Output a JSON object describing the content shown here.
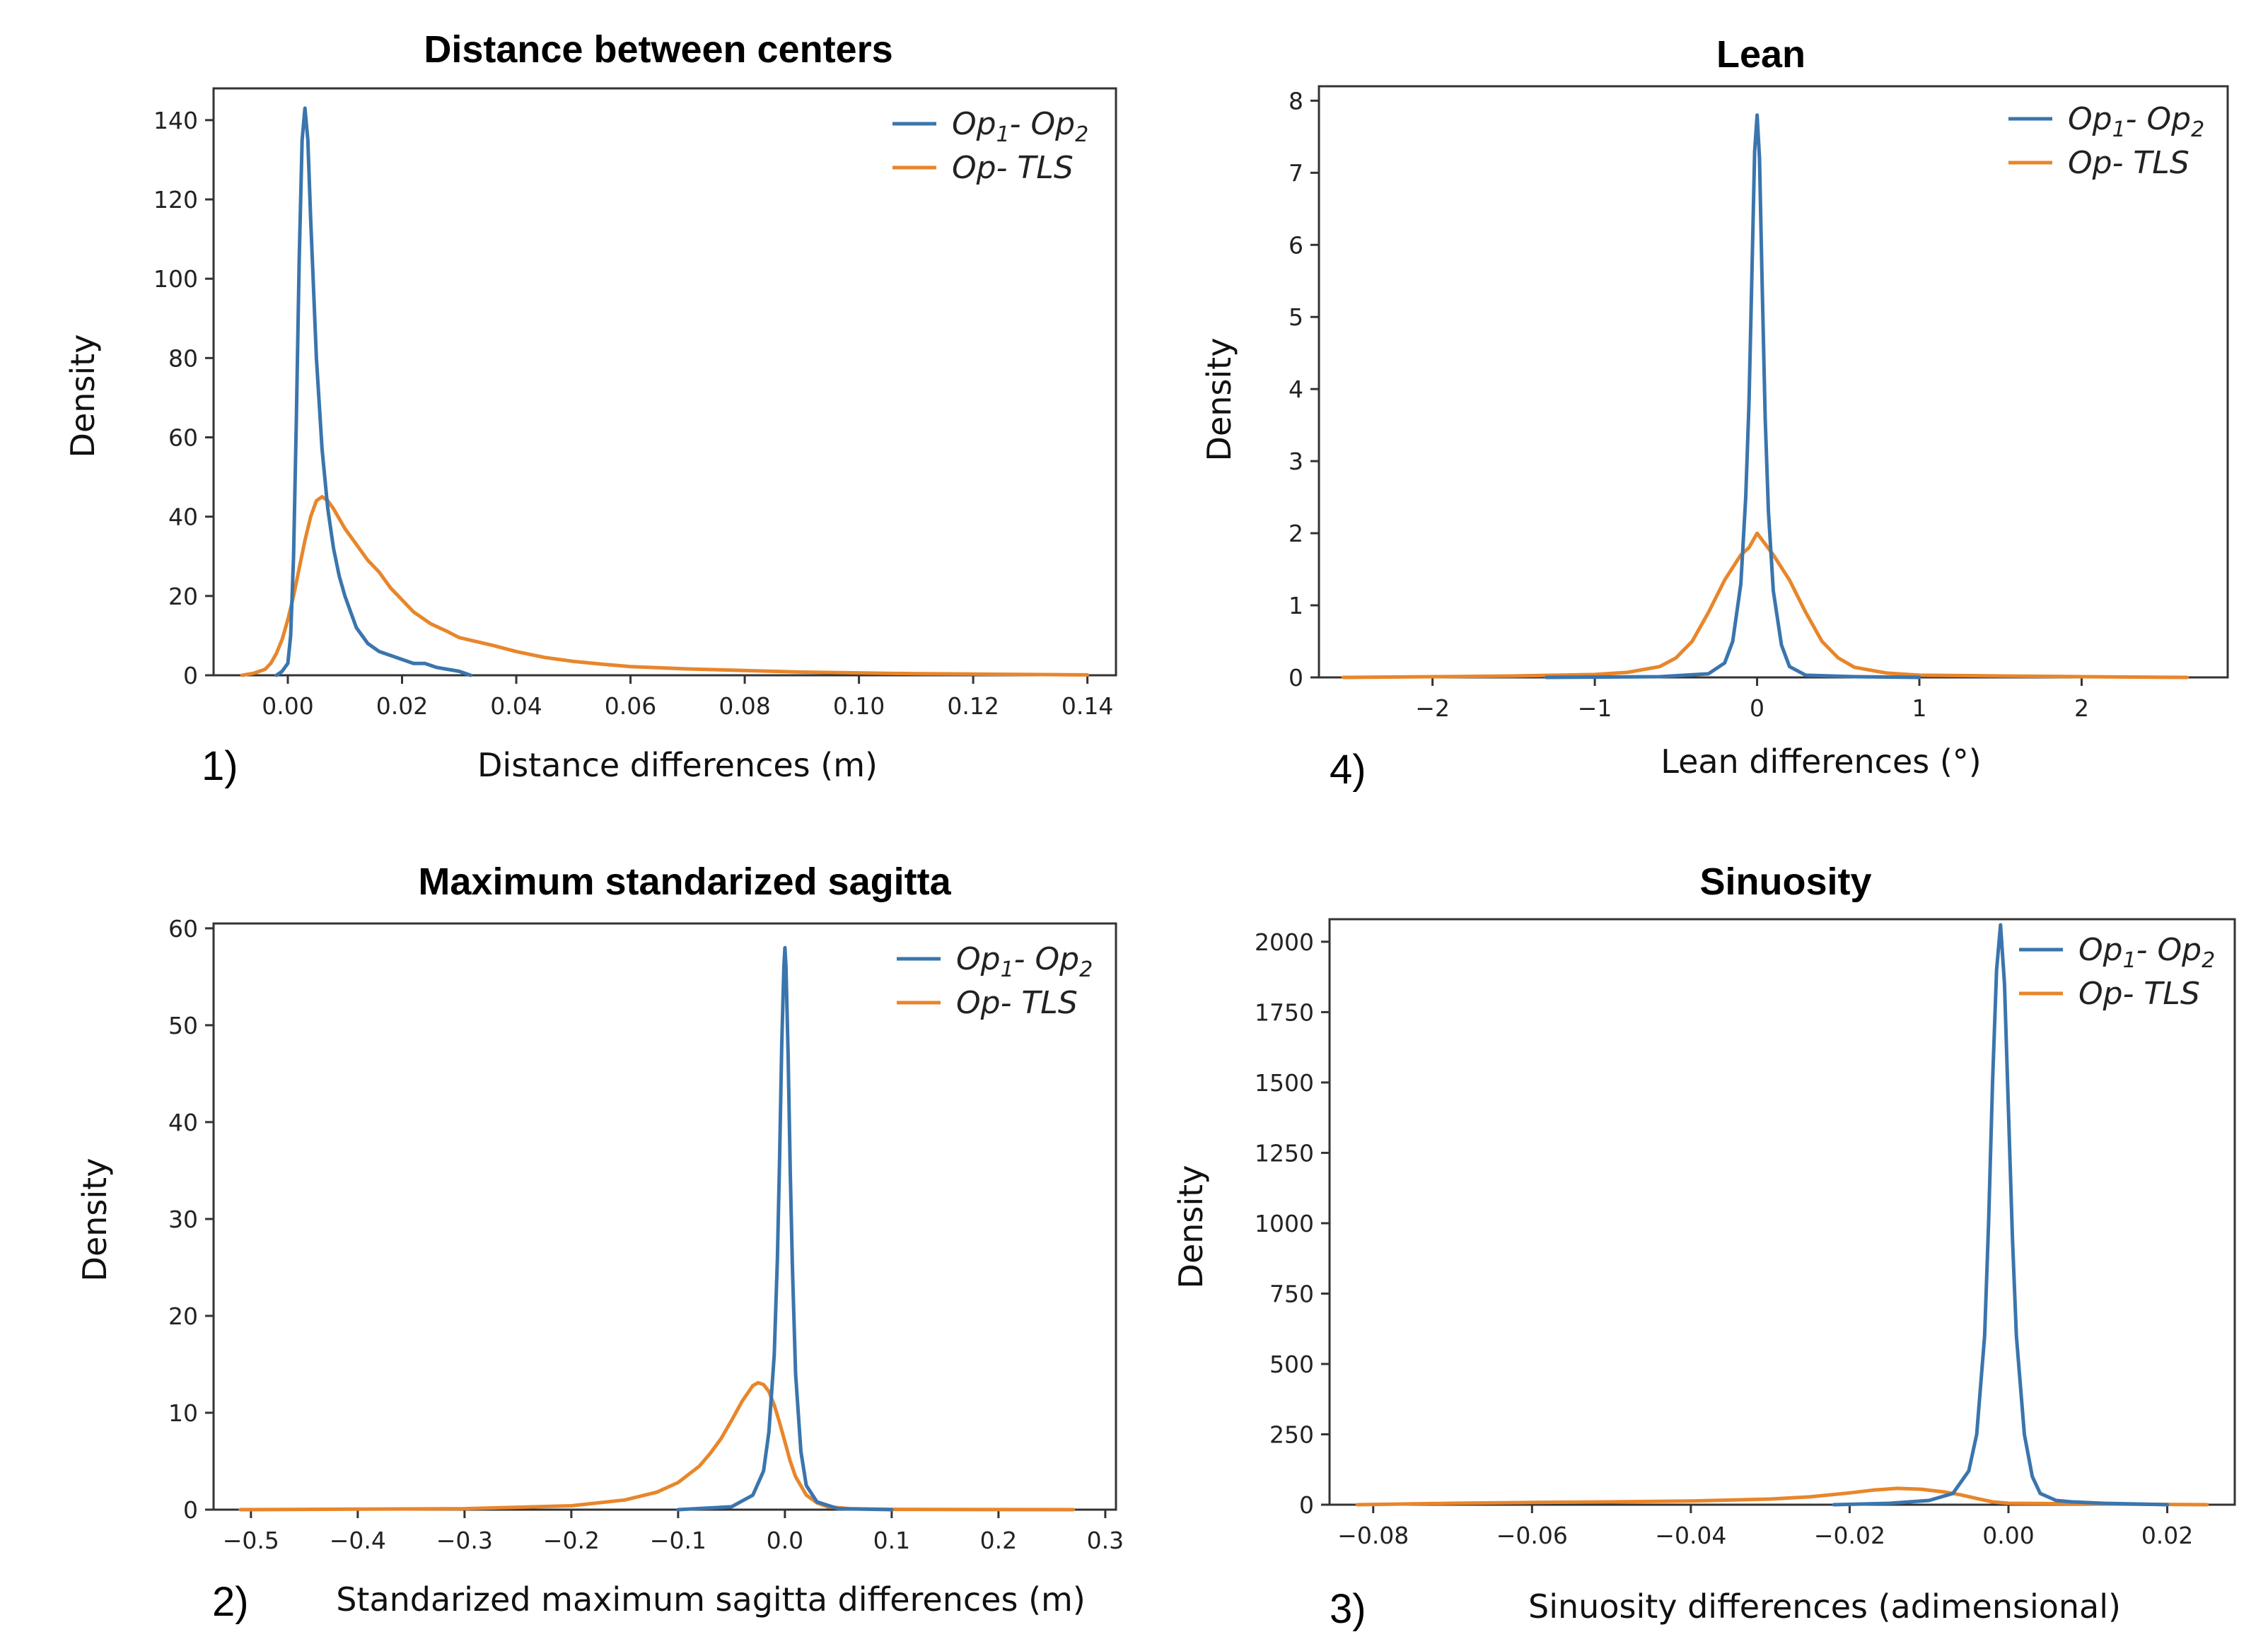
{
  "chart_data": [
    {
      "id": "p1",
      "type": "line",
      "title": "Distance between centers",
      "xlabel": "Distance differences  (m)",
      "ylabel": "Density",
      "panel_label": "1)",
      "xlim": [
        -0.013,
        0.145
      ],
      "ylim": [
        0,
        148
      ],
      "xticks": [
        0.0,
        0.02,
        0.04,
        0.06,
        0.08,
        0.1,
        0.12,
        0.14
      ],
      "xtick_labels": [
        "0.00",
        "0.02",
        "0.04",
        "0.06",
        "0.08",
        "0.10",
        "0.12",
        "0.14"
      ],
      "yticks": [
        0,
        20,
        40,
        60,
        80,
        100,
        120,
        140
      ],
      "ytick_labels": [
        "0",
        "20",
        "40",
        "60",
        "80",
        "100",
        "120",
        "140"
      ],
      "series": [
        {
          "name": "Op1- Op2",
          "color": "#3a75ad",
          "x": [
            -0.002,
            -0.001,
            0.0,
            0.0005,
            0.001,
            0.0015,
            0.002,
            0.0025,
            0.003,
            0.0035,
            0.004,
            0.005,
            0.006,
            0.007,
            0.008,
            0.009,
            0.01,
            0.011,
            0.012,
            0.013,
            0.014,
            0.016,
            0.018,
            0.02,
            0.022,
            0.024,
            0.026,
            0.028,
            0.03,
            0.032
          ],
          "y": [
            0,
            1,
            3,
            10,
            30,
            65,
            105,
            135,
            143,
            135,
            115,
            80,
            57,
            42,
            32,
            25,
            20,
            16,
            12,
            10,
            8,
            6,
            5,
            4,
            3,
            3,
            2,
            1.5,
            1,
            0
          ]
        },
        {
          "name": "Op- TLS",
          "color": "#e8862b",
          "x": [
            -0.008,
            -0.006,
            -0.004,
            -0.003,
            -0.002,
            -0.001,
            0.0,
            0.001,
            0.002,
            0.003,
            0.004,
            0.005,
            0.006,
            0.007,
            0.008,
            0.01,
            0.012,
            0.014,
            0.016,
            0.018,
            0.02,
            0.022,
            0.025,
            0.028,
            0.03,
            0.033,
            0.036,
            0.04,
            0.045,
            0.05,
            0.055,
            0.06,
            0.07,
            0.08,
            0.09,
            0.1,
            0.11,
            0.12,
            0.13,
            0.14
          ],
          "y": [
            0,
            0.5,
            1.5,
            3,
            5.5,
            9,
            14,
            20,
            27,
            34,
            40,
            44,
            45,
            44,
            42,
            37,
            33,
            29,
            26,
            22,
            19,
            16,
            13,
            11,
            9.5,
            8.5,
            7.5,
            6,
            4.5,
            3.5,
            2.8,
            2.2,
            1.6,
            1.2,
            0.8,
            0.6,
            0.4,
            0.3,
            0.2,
            0.1
          ]
        }
      ],
      "legend": [
        "Op1- Op2",
        "Op- TLS"
      ],
      "legend_position": "top-right"
    },
    {
      "id": "p4",
      "type": "line",
      "title": "Lean",
      "xlabel": "Lean differences  (°)",
      "ylabel": "Density",
      "panel_label": "4)",
      "xlim": [
        -2.7,
        2.9
      ],
      "ylim": [
        0,
        8.2
      ],
      "xticks": [
        -2,
        -1,
        0,
        1,
        2
      ],
      "xtick_labels": [
        "−2",
        "−1",
        "0",
        "1",
        "2"
      ],
      "yticks": [
        0,
        1,
        2,
        3,
        4,
        5,
        6,
        7,
        8
      ],
      "ytick_labels": [
        "0",
        "1",
        "2",
        "3",
        "4",
        "5",
        "6",
        "7",
        "8"
      ],
      "series": [
        {
          "name": "Op1- Op2",
          "color": "#3a75ad",
          "x": [
            -1.3,
            -0.6,
            -0.3,
            -0.2,
            -0.15,
            -0.1,
            -0.07,
            -0.05,
            -0.03,
            -0.015,
            0.0,
            0.015,
            0.03,
            0.05,
            0.07,
            0.1,
            0.15,
            0.2,
            0.3,
            0.6,
            1.0
          ],
          "y": [
            0,
            0.01,
            0.05,
            0.2,
            0.5,
            1.3,
            2.5,
            3.8,
            5.8,
            7.3,
            7.8,
            7.2,
            5.6,
            3.6,
            2.3,
            1.2,
            0.45,
            0.15,
            0.03,
            0.01,
            0
          ]
        },
        {
          "name": "Op- TLS",
          "color": "#e8862b",
          "x": [
            -2.55,
            -2.0,
            -1.5,
            -1.0,
            -0.8,
            -0.6,
            -0.5,
            -0.4,
            -0.3,
            -0.2,
            -0.1,
            -0.05,
            0.0,
            0.05,
            0.1,
            0.2,
            0.3,
            0.4,
            0.5,
            0.6,
            0.8,
            1.0,
            1.5,
            2.0,
            2.65
          ],
          "y": [
            0,
            0.01,
            0.02,
            0.04,
            0.07,
            0.15,
            0.27,
            0.5,
            0.9,
            1.35,
            1.7,
            1.8,
            2.0,
            1.85,
            1.7,
            1.35,
            0.9,
            0.5,
            0.27,
            0.14,
            0.06,
            0.03,
            0.02,
            0.01,
            0
          ]
        }
      ],
      "legend": [
        "Op1- Op2",
        "Op- TLS"
      ],
      "legend_position": "top-right"
    },
    {
      "id": "p2",
      "type": "line",
      "title": "Maximum standarized sagitta",
      "xlabel": "Standarized maximum sagitta differences  (m)",
      "ylabel": "Density",
      "panel_label": "2)",
      "xlim": [
        -0.535,
        0.31
      ],
      "ylim": [
        0,
        60.5
      ],
      "xticks": [
        -0.5,
        -0.4,
        -0.3,
        -0.2,
        -0.1,
        0.0,
        0.1,
        0.2,
        0.3
      ],
      "xtick_labels": [
        "−0.5",
        "−0.4",
        "−0.3",
        "−0.2",
        "−0.1",
        "0.0",
        "0.1",
        "0.2",
        "0.3"
      ],
      "yticks": [
        0,
        10,
        20,
        30,
        40,
        50,
        60
      ],
      "ytick_labels": [
        "0",
        "10",
        "20",
        "30",
        "40",
        "50",
        "60"
      ],
      "series": [
        {
          "name": "Op1- Op2",
          "color": "#3a75ad",
          "x": [
            -0.1,
            -0.05,
            -0.03,
            -0.02,
            -0.015,
            -0.01,
            -0.007,
            -0.005,
            -0.003,
            -0.001,
            0.0,
            0.001,
            0.003,
            0.005,
            0.007,
            0.01,
            0.015,
            0.02,
            0.03,
            0.05,
            0.1
          ],
          "y": [
            0,
            0.3,
            1.5,
            4,
            8,
            16,
            26,
            36,
            48,
            56,
            58,
            56,
            47,
            35,
            25,
            14,
            6,
            2.5,
            0.8,
            0.1,
            0
          ]
        },
        {
          "name": "Op- TLS",
          "color": "#e8862b",
          "x": [
            -0.51,
            -0.4,
            -0.3,
            -0.2,
            -0.15,
            -0.12,
            -0.1,
            -0.08,
            -0.07,
            -0.06,
            -0.05,
            -0.04,
            -0.03,
            -0.025,
            -0.02,
            -0.015,
            -0.01,
            -0.005,
            0.0,
            0.005,
            0.01,
            0.02,
            0.03,
            0.04,
            0.06,
            0.1,
            0.2,
            0.27
          ],
          "y": [
            0,
            0.05,
            0.1,
            0.4,
            1.0,
            1.8,
            2.8,
            4.5,
            5.8,
            7.3,
            9.2,
            11.2,
            12.8,
            13.1,
            12.9,
            12.2,
            10.8,
            9.0,
            7.0,
            5.0,
            3.4,
            1.5,
            0.7,
            0.3,
            0.1,
            0.03,
            0.01,
            0
          ]
        }
      ],
      "legend": [
        "Op1- Op2",
        "Op- TLS"
      ],
      "legend_position": "top-right"
    },
    {
      "id": "p3",
      "type": "line",
      "title": "Sinuosity",
      "xlabel": "Sinuosity differences  (adimensional)",
      "ylabel": "Density",
      "panel_label": "3)",
      "xlim": [
        -0.0855,
        0.0285
      ],
      "ylim": [
        0,
        2080
      ],
      "xticks": [
        -0.08,
        -0.06,
        -0.04,
        -0.02,
        0.0,
        0.02
      ],
      "xtick_labels": [
        "−0.08",
        "−0.06",
        "−0.04",
        "−0.02",
        "0.00",
        "0.02"
      ],
      "yticks": [
        0,
        250,
        500,
        750,
        1000,
        1250,
        1500,
        1750,
        2000
      ],
      "ytick_labels": [
        "0",
        "250",
        "500",
        "750",
        "1000",
        "1250",
        "1500",
        "1750",
        "2000"
      ],
      "series": [
        {
          "name": "Op1- Op2",
          "color": "#3a75ad",
          "x": [
            -0.022,
            -0.015,
            -0.01,
            -0.007,
            -0.005,
            -0.004,
            -0.003,
            -0.0025,
            -0.002,
            -0.0015,
            -0.001,
            -0.0005,
            0.0,
            0.0005,
            0.001,
            0.002,
            0.003,
            0.004,
            0.006,
            0.008,
            0.012,
            0.02
          ],
          "y": [
            0,
            5,
            15,
            40,
            120,
            250,
            600,
            1000,
            1500,
            1900,
            2060,
            1850,
            1400,
            950,
            600,
            250,
            100,
            40,
            15,
            10,
            5,
            0
          ]
        },
        {
          "name": "Op- TLS",
          "color": "#e8862b",
          "x": [
            -0.082,
            -0.07,
            -0.06,
            -0.05,
            -0.04,
            -0.03,
            -0.025,
            -0.02,
            -0.017,
            -0.014,
            -0.011,
            -0.008,
            -0.006,
            -0.004,
            -0.002,
            0.0,
            0.005,
            0.01,
            0.015,
            0.02,
            0.025
          ],
          "y": [
            0,
            5,
            8,
            10,
            13,
            20,
            28,
            42,
            52,
            58,
            55,
            45,
            35,
            22,
            10,
            5,
            4,
            3,
            2,
            1,
            0
          ]
        }
      ],
      "legend": [
        "Op1- Op2",
        "Op- TLS"
      ],
      "legend_position": "top-right"
    }
  ]
}
